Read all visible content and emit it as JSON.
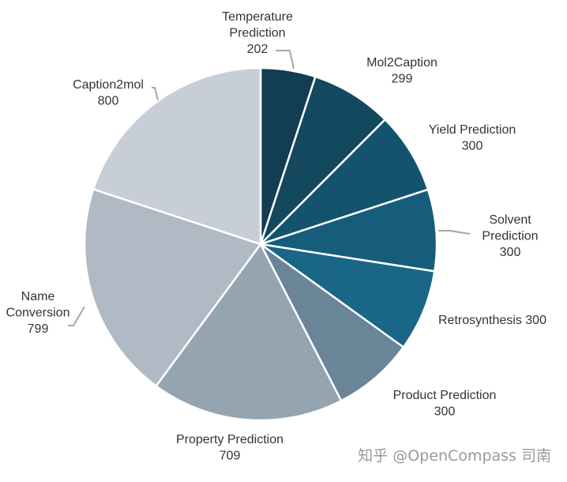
{
  "chart_data": {
    "type": "pie",
    "title": "",
    "start_angle_deg": 0,
    "direction": "clockwise",
    "slices": [
      {
        "label_lines": [
          "Temperature",
          "Prediction"
        ],
        "value": 202,
        "color": "#123d52"
      },
      {
        "label_lines": [
          "Mol2Caption"
        ],
        "value": 299,
        "color": "#13485f"
      },
      {
        "label_lines": [
          "Yield Prediction"
        ],
        "value": 300,
        "color": "#14536e"
      },
      {
        "label_lines": [
          "Solvent",
          "Prediction"
        ],
        "value": 300,
        "color": "#155d7b"
      },
      {
        "label_lines": [
          "Retrosynthesis 300"
        ],
        "value": 300,
        "value_inline": true,
        "color": "#1a6687"
      },
      {
        "label_lines": [
          "Product Prediction"
        ],
        "value": 300,
        "color": "#6a8598"
      },
      {
        "label_lines": [
          "Property Prediction"
        ],
        "value": 709,
        "color": "#94a5b1"
      },
      {
        "label_lines": [
          "Name",
          "Conversion"
        ],
        "value": 799,
        "color": "#afbac4"
      },
      {
        "label_lines": [
          "Caption2mol"
        ],
        "value": 800,
        "color": "#c7ced6"
      }
    ]
  },
  "watermark": {
    "text": "知乎 @OpenCompass 司南"
  }
}
